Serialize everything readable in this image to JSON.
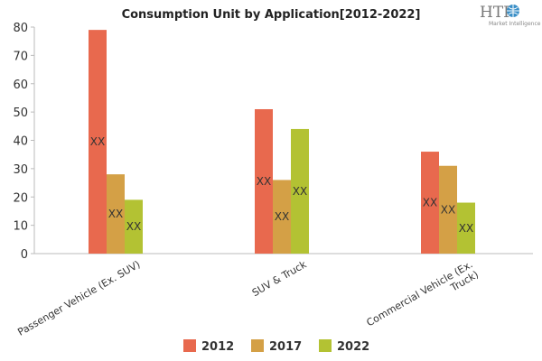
{
  "logo": {
    "text": "HTF",
    "subtitle": "Market Intelligence",
    "icon": "globe-icon",
    "accent": "#3a8fc7"
  },
  "chart_data": {
    "type": "bar",
    "title": "Consumption Unit by  Application[2012-2022]",
    "categories": [
      "Passenger Vehicle (Ex. SUV)",
      "SUV & Truck",
      "Commercial Vehicle (Ex. Truck)"
    ],
    "category_lines": [
      [
        "Passenger Vehicle (Ex. SUV)"
      ],
      [
        "SUV & Truck"
      ],
      [
        "Commercial Vehicle (Ex.",
        "Truck)"
      ]
    ],
    "series": [
      {
        "name": "2012",
        "color": "#e8694e",
        "values": [
          79,
          51,
          36
        ]
      },
      {
        "name": "2017",
        "color": "#d4a046",
        "values": [
          28,
          26,
          31
        ]
      },
      {
        "name": "2022",
        "color": "#b3c233",
        "values": [
          19,
          44,
          18
        ]
      }
    ],
    "data_label": "XX",
    "yticks": [
      0,
      10,
      20,
      30,
      40,
      50,
      60,
      70,
      80
    ],
    "ylim": [
      0,
      80
    ],
    "grid": false,
    "legend_position": "bottom"
  }
}
